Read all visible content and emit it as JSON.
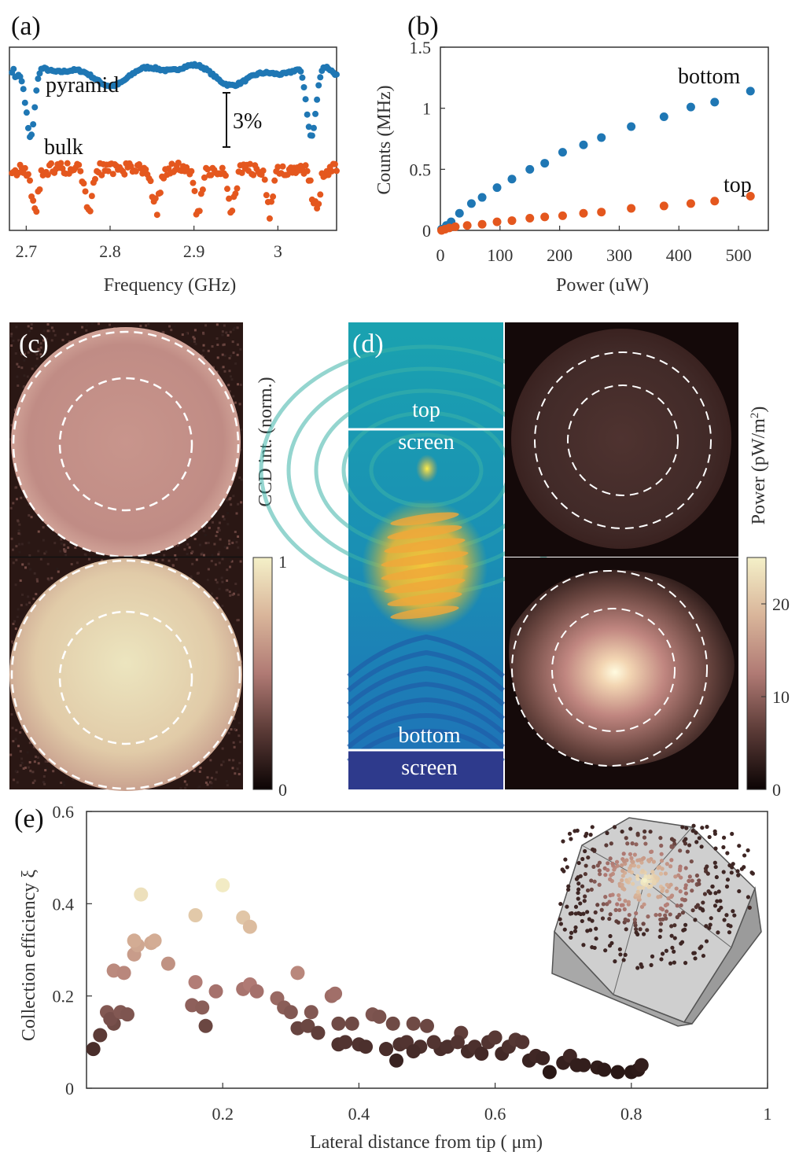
{
  "chart_data": [
    {
      "id": "a",
      "type": "scatter",
      "panel_label": "(a)",
      "xlabel": "Frequency (GHz)",
      "ylabel": "",
      "xlim": [
        2.68,
        3.07
      ],
      "ylim": [
        0,
        1
      ],
      "x_ticks": [
        "2.7",
        "2.8",
        "2.9",
        "3"
      ],
      "x_tick_values": [
        2.7,
        2.8,
        2.9,
        3.0
      ],
      "scale_bar_label": "3%",
      "series": [
        {
          "name": "pyramid",
          "color": "#1f77b4",
          "annotation": "pyramid"
        },
        {
          "name": "bulk",
          "color": "#e4571e",
          "annotation": "bulk"
        }
      ]
    },
    {
      "id": "b",
      "type": "scatter",
      "panel_label": "(b)",
      "xlabel": "Power (uW)",
      "ylabel": "Counts (MHz)",
      "xlim": [
        0,
        550
      ],
      "ylim": [
        0,
        1.5
      ],
      "x_ticks": [
        "0",
        "100",
        "200",
        "300",
        "400",
        "500"
      ],
      "x_tick_values": [
        0,
        100,
        200,
        300,
        400,
        500
      ],
      "y_ticks": [
        "0",
        "0.5",
        "1",
        "1.5"
      ],
      "y_tick_values": [
        0,
        0.5,
        1,
        1.5
      ],
      "series": [
        {
          "name": "bottom",
          "color": "#1f77b4",
          "annotation": "bottom",
          "x": [
            2,
            10,
            18,
            32,
            52,
            70,
            95,
            120,
            150,
            175,
            205,
            240,
            270,
            320,
            375,
            420,
            460,
            520
          ],
          "y": [
            0.01,
            0.04,
            0.07,
            0.14,
            0.22,
            0.27,
            0.35,
            0.42,
            0.5,
            0.55,
            0.64,
            0.7,
            0.76,
            0.85,
            0.93,
            1.01,
            1.05,
            1.14
          ]
        },
        {
          "name": "top",
          "color": "#e4571e",
          "annotation": "top",
          "x": [
            2,
            8,
            15,
            25,
            45,
            70,
            95,
            120,
            150,
            175,
            205,
            240,
            270,
            320,
            375,
            420,
            460,
            520
          ],
          "y": [
            0.0,
            0.01,
            0.02,
            0.03,
            0.04,
            0.05,
            0.07,
            0.08,
            0.1,
            0.11,
            0.12,
            0.14,
            0.15,
            0.18,
            0.2,
            0.22,
            0.24,
            0.28
          ]
        }
      ]
    },
    {
      "id": "c",
      "type": "heatmap",
      "panel_label": "(c)",
      "colorbar_label": "CCD int.  (norm.)",
      "colorbar_ticks": [
        "0",
        "1"
      ],
      "colorbar_tick_values": [
        0,
        1
      ]
    },
    {
      "id": "d",
      "type": "heatmap",
      "panel_label": "(d)",
      "labels": [
        "top",
        "screen",
        "bottom",
        "screen"
      ],
      "colorbar_label": "Power (pW/m",
      "colorbar_label_sup": "2",
      "colorbar_label_close": ")",
      "colorbar_ticks": [
        "0",
        "10",
        "20"
      ],
      "colorbar_tick_values": [
        0,
        10,
        20
      ],
      "colorbar_range": [
        0,
        25
      ]
    },
    {
      "id": "e",
      "type": "scatter",
      "panel_label": "(e)",
      "xlabel": "Lateral distance from tip ( μm)",
      "ylabel": "Collection efficiency ξ",
      "xlim": [
        0,
        1
      ],
      "ylim": [
        0,
        0.6
      ],
      "x_ticks": [
        "0.2",
        "0.4",
        "0.6",
        "0.8",
        "1"
      ],
      "x_tick_values": [
        0.2,
        0.4,
        0.6,
        0.8,
        1.0
      ],
      "y_ticks": [
        "0",
        "0.2",
        "0.4",
        "0.6"
      ],
      "y_tick_values": [
        0,
        0.2,
        0.4,
        0.6
      ],
      "x": [
        0.01,
        0.02,
        0.03,
        0.04,
        0.035,
        0.05,
        0.04,
        0.055,
        0.06,
        0.07,
        0.075,
        0.08,
        0.07,
        0.095,
        0.1,
        0.12,
        0.155,
        0.16,
        0.16,
        0.175,
        0.17,
        0.19,
        0.2,
        0.23,
        0.23,
        0.24,
        0.24,
        0.25,
        0.28,
        0.29,
        0.3,
        0.31,
        0.31,
        0.325,
        0.33,
        0.34,
        0.36,
        0.365,
        0.37,
        0.37,
        0.38,
        0.39,
        0.4,
        0.41,
        0.42,
        0.43,
        0.44,
        0.45,
        0.46,
        0.47,
        0.48,
        0.49,
        0.5,
        0.44,
        0.52,
        0.53,
        0.55,
        0.56,
        0.57,
        0.58,
        0.59,
        0.6,
        0.61,
        0.62,
        0.63,
        0.64,
        0.65,
        0.66,
        0.67,
        0.68,
        0.7,
        0.71,
        0.72,
        0.73,
        0.75,
        0.76,
        0.78,
        0.8,
        0.81,
        0.815,
        0.545,
        0.51,
        0.455,
        0.48
      ],
      "y": [
        0.085,
        0.115,
        0.165,
        0.14,
        0.15,
        0.165,
        0.255,
        0.25,
        0.16,
        0.29,
        0.31,
        0.42,
        0.32,
        0.315,
        0.32,
        0.27,
        0.18,
        0.375,
        0.23,
        0.135,
        0.175,
        0.21,
        0.44,
        0.37,
        0.215,
        0.35,
        0.225,
        0.21,
        0.195,
        0.175,
        0.165,
        0.13,
        0.25,
        0.135,
        0.165,
        0.12,
        0.2,
        0.205,
        0.14,
        0.095,
        0.1,
        0.14,
        0.095,
        0.09,
        0.16,
        0.155,
        0.085,
        0.14,
        0.095,
        0.1,
        0.14,
        0.09,
        0.135,
        0.085,
        0.085,
        0.09,
        0.12,
        0.08,
        0.09,
        0.075,
        0.1,
        0.11,
        0.075,
        0.09,
        0.105,
        0.1,
        0.06,
        0.07,
        0.065,
        0.035,
        0.055,
        0.07,
        0.05,
        0.05,
        0.045,
        0.04,
        0.035,
        0.035,
        0.04,
        0.05,
        0.1,
        0.1,
        0.06,
        0.08
      ]
    }
  ]
}
